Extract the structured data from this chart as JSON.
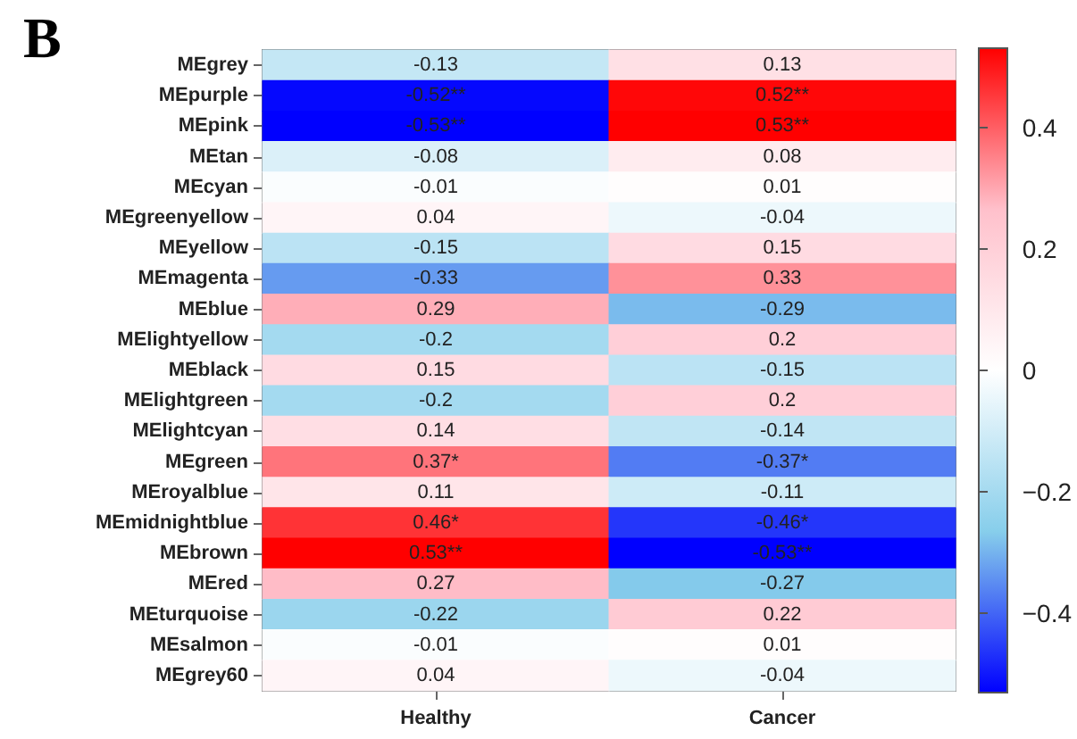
{
  "chart_data": {
    "type": "heatmap",
    "title": "B",
    "categories": [
      "Healthy",
      "Cancer"
    ],
    "y_categories": [
      "MEgrey",
      "MEpurple",
      "MEpink",
      "MEtan",
      "MEcyan",
      "MEgreenyellow",
      "MEyellow",
      "MEmagenta",
      "MEblue",
      "MElightyellow",
      "MEblack",
      "MElightgreen",
      "MElightcyan",
      "MEgreen",
      "MEroyalblue",
      "MEmidnightblue",
      "MEbrown",
      "MEred",
      "MEturquoise",
      "MEsalmon",
      "MEgrey60"
    ],
    "cells": [
      [
        -0.13,
        0.13
      ],
      [
        -0.52,
        0.52
      ],
      [
        -0.53,
        0.53
      ],
      [
        -0.08,
        0.08
      ],
      [
        -0.01,
        0.01
      ],
      [
        0.04,
        -0.04
      ],
      [
        -0.15,
        0.15
      ],
      [
        -0.33,
        0.33
      ],
      [
        0.29,
        -0.29
      ],
      [
        -0.2,
        0.2
      ],
      [
        0.15,
        -0.15
      ],
      [
        -0.2,
        0.2
      ],
      [
        0.14,
        -0.14
      ],
      [
        0.37,
        -0.37
      ],
      [
        0.11,
        -0.11
      ],
      [
        0.46,
        -0.46
      ],
      [
        0.53,
        -0.53
      ],
      [
        0.27,
        -0.27
      ],
      [
        -0.22,
        0.22
      ],
      [
        -0.01,
        0.01
      ],
      [
        0.04,
        -0.04
      ]
    ],
    "cell_labels": [
      [
        "-0.13",
        "0.13"
      ],
      [
        "-0.52**",
        "0.52**"
      ],
      [
        "-0.53**",
        "0.53**"
      ],
      [
        "-0.08",
        "0.08"
      ],
      [
        "-0.01",
        "0.01"
      ],
      [
        "0.04",
        "-0.04"
      ],
      [
        "-0.15",
        "0.15"
      ],
      [
        "-0.33",
        "0.33"
      ],
      [
        "0.29",
        "-0.29"
      ],
      [
        "-0.2",
        "0.2"
      ],
      [
        "0.15",
        "-0.15"
      ],
      [
        "-0.2",
        "0.2"
      ],
      [
        "0.14",
        "-0.14"
      ],
      [
        "0.37*",
        "-0.37*"
      ],
      [
        "0.11",
        "-0.11"
      ],
      [
        "0.46*",
        "-0.46*"
      ],
      [
        "0.53**",
        "-0.53**"
      ],
      [
        "0.27",
        "-0.27"
      ],
      [
        "-0.22",
        "0.22"
      ],
      [
        "-0.01",
        "0.01"
      ],
      [
        "0.04",
        "-0.04"
      ]
    ],
    "clim": [
      -0.53,
      0.53
    ],
    "cticks": [
      -0.4,
      -0.2,
      0,
      0.2,
      0.4
    ]
  }
}
